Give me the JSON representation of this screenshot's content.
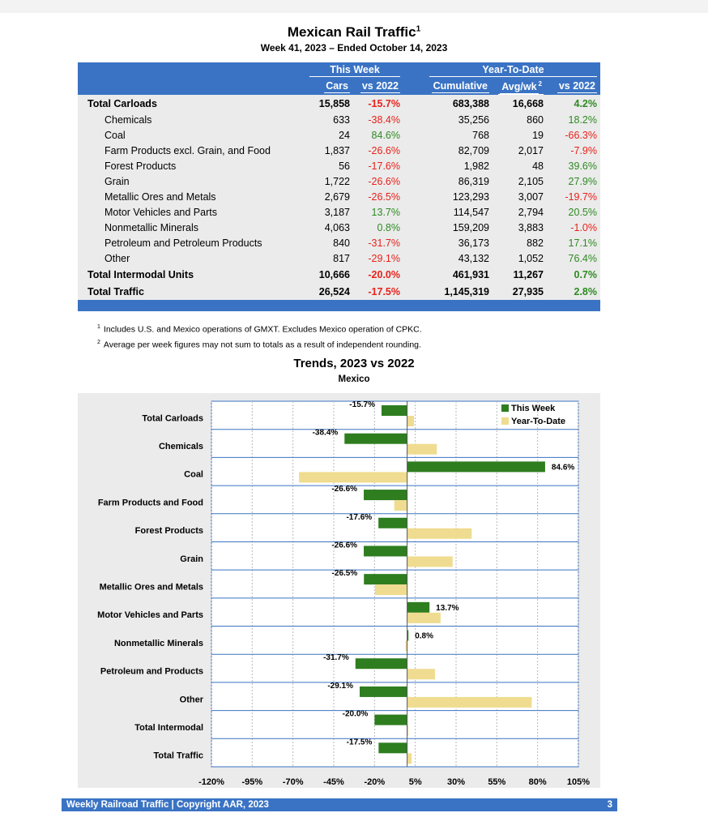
{
  "title": "Mexican Rail Traffic",
  "title_sup": "1",
  "subtitle": "Week 41, 2023 – Ended October 14, 2023",
  "table": {
    "group_this_week": "This Week",
    "group_ytd": "Year-To-Date",
    "col_cars": "Cars",
    "col_vs2022": "vs 2022",
    "col_cumulative": "Cumulative",
    "col_avgwk": "Avg/wk",
    "col_avgwk_sup": "2",
    "col_vs2022_ytd": "vs 2022",
    "rows": [
      {
        "label": "Total Carloads",
        "cars": "15,858",
        "vs": "-15.7%",
        "cum": "683,388",
        "avg": "16,668",
        "ytd": "4.2%",
        "bold": true,
        "indent": false
      },
      {
        "label": "Chemicals",
        "cars": "633",
        "vs": "-38.4%",
        "cum": "35,256",
        "avg": "860",
        "ytd": "18.2%",
        "bold": false,
        "indent": true
      },
      {
        "label": "Coal",
        "cars": "24",
        "vs": "84.6%",
        "cum": "768",
        "avg": "19",
        "ytd": "-66.3%",
        "bold": false,
        "indent": true
      },
      {
        "label": "Farm Products excl. Grain, and Food",
        "cars": "1,837",
        "vs": "-26.6%",
        "cum": "82,709",
        "avg": "2,017",
        "ytd": "-7.9%",
        "bold": false,
        "indent": true
      },
      {
        "label": "Forest Products",
        "cars": "56",
        "vs": "-17.6%",
        "cum": "1,982",
        "avg": "48",
        "ytd": "39.6%",
        "bold": false,
        "indent": true
      },
      {
        "label": "Grain",
        "cars": "1,722",
        "vs": "-26.6%",
        "cum": "86,319",
        "avg": "2,105",
        "ytd": "27.9%",
        "bold": false,
        "indent": true
      },
      {
        "label": "Metallic Ores and Metals",
        "cars": "2,679",
        "vs": "-26.5%",
        "cum": "123,293",
        "avg": "3,007",
        "ytd": "-19.7%",
        "bold": false,
        "indent": true
      },
      {
        "label": "Motor Vehicles and Parts",
        "cars": "3,187",
        "vs": "13.7%",
        "cum": "114,547",
        "avg": "2,794",
        "ytd": "20.5%",
        "bold": false,
        "indent": true
      },
      {
        "label": "Nonmetallic Minerals",
        "cars": "4,063",
        "vs": "0.8%",
        "cum": "159,209",
        "avg": "3,883",
        "ytd": "-1.0%",
        "bold": false,
        "indent": true
      },
      {
        "label": "Petroleum and Petroleum Products",
        "cars": "840",
        "vs": "-31.7%",
        "cum": "36,173",
        "avg": "882",
        "ytd": "17.1%",
        "bold": false,
        "indent": true
      },
      {
        "label": "Other",
        "cars": "817",
        "vs": "-29.1%",
        "cum": "43,132",
        "avg": "1,052",
        "ytd": "76.4%",
        "bold": false,
        "indent": true
      },
      {
        "label": "Total Intermodal Units",
        "cars": "10,666",
        "vs": "-20.0%",
        "cum": "461,931",
        "avg": "11,267",
        "ytd": "0.7%",
        "bold": true,
        "indent": false
      },
      {
        "label": "Total Traffic",
        "cars": "26,524",
        "vs": "-17.5%",
        "cum": "1,145,319",
        "avg": "27,935",
        "ytd": "2.8%",
        "bold": true,
        "indent": false
      }
    ]
  },
  "notes": [
    {
      "sup": "1",
      "text": "Includes U.S. and Mexico operations of GMXT. Excludes Mexico operation of CPKC."
    },
    {
      "sup": "2",
      "text": "Average per week figures may not sum to totals as a result of independent rounding."
    }
  ],
  "chart_data": {
    "type": "bar",
    "orientation": "horizontal",
    "title": "Trends, 2023 vs 2022",
    "subtitle": "Mexico",
    "categories": [
      "Total Carloads",
      "Chemicals",
      "Coal",
      "Farm Products and Food",
      "Forest Products",
      "Grain",
      "Metallic Ores and Metals",
      "Motor Vehicles and Parts",
      "Nonmetallic Minerals",
      "Petroleum and Products",
      "Other",
      "Total Intermodal",
      "Total Traffic"
    ],
    "series": [
      {
        "name": "This Week",
        "color": "#2e7d1f",
        "values": [
          -15.7,
          -38.4,
          84.6,
          -26.6,
          -17.6,
          -26.6,
          -26.5,
          13.7,
          0.8,
          -31.7,
          -29.1,
          -20.0,
          -17.5
        ],
        "labels": [
          "-15.7%",
          "-38.4%",
          "84.6%",
          "-26.6%",
          "-17.6%",
          "-26.6%",
          "-26.5%",
          "13.7%",
          "0.8%",
          "-31.7%",
          "-29.1%",
          "-20.0%",
          "-17.5%"
        ]
      },
      {
        "name": "Year-To-Date",
        "color": "#f0dc90",
        "values": [
          4.2,
          18.2,
          -66.3,
          -7.9,
          39.6,
          27.9,
          -19.7,
          20.5,
          -1.0,
          17.1,
          76.4,
          0.7,
          2.8
        ]
      }
    ],
    "xticks": [
      "-120%",
      "-95%",
      "-70%",
      "-45%",
      "-20%",
      "5%",
      "30%",
      "55%",
      "80%",
      "105%"
    ],
    "xlim": [
      -120,
      105
    ],
    "xstep": 25,
    "grid": true,
    "legend": "top-right"
  },
  "footer": {
    "left": "Weekly Railroad Traffic | Copyright AAR, 2023",
    "page": "3"
  }
}
